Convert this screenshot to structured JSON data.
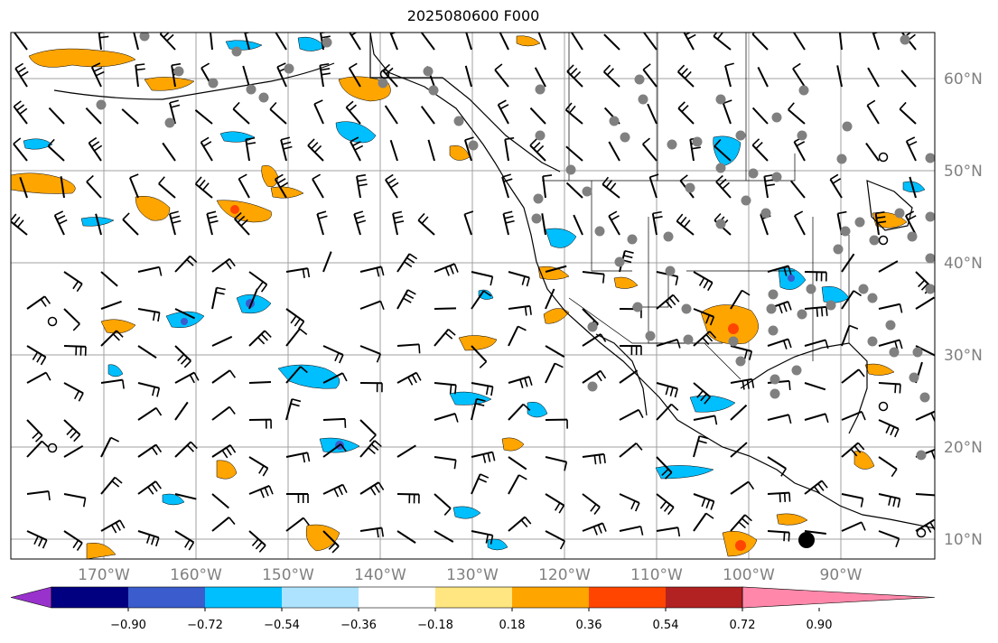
{
  "title": "2025080600 F000",
  "map": {
    "lat_labels": [
      "60°N",
      "50°N",
      "40°N",
      "30°N",
      "20°N",
      "10°N"
    ],
    "lon_labels": [
      "170°W",
      "160°W",
      "150°W",
      "140°W",
      "130°W",
      "120°W",
      "110°W",
      "100°W",
      "90°W"
    ],
    "coastline_color": "#000000",
    "grid_color": "#a0a0a0",
    "station_color": "#808080"
  },
  "colorbar": {
    "colors": [
      "#9932cc",
      "#000080",
      "#3a5ccc",
      "#00bfff",
      "#aee3ff",
      "#ffffff",
      "#ffe680",
      "#ffa500",
      "#ff4500",
      "#b22222",
      "#ff88aa"
    ],
    "tick_labels": [
      "−0.90",
      "−0.72",
      "−0.54",
      "−0.36",
      "−0.18",
      "0.18",
      "0.36",
      "0.54",
      "0.72",
      "0.90"
    ]
  }
}
